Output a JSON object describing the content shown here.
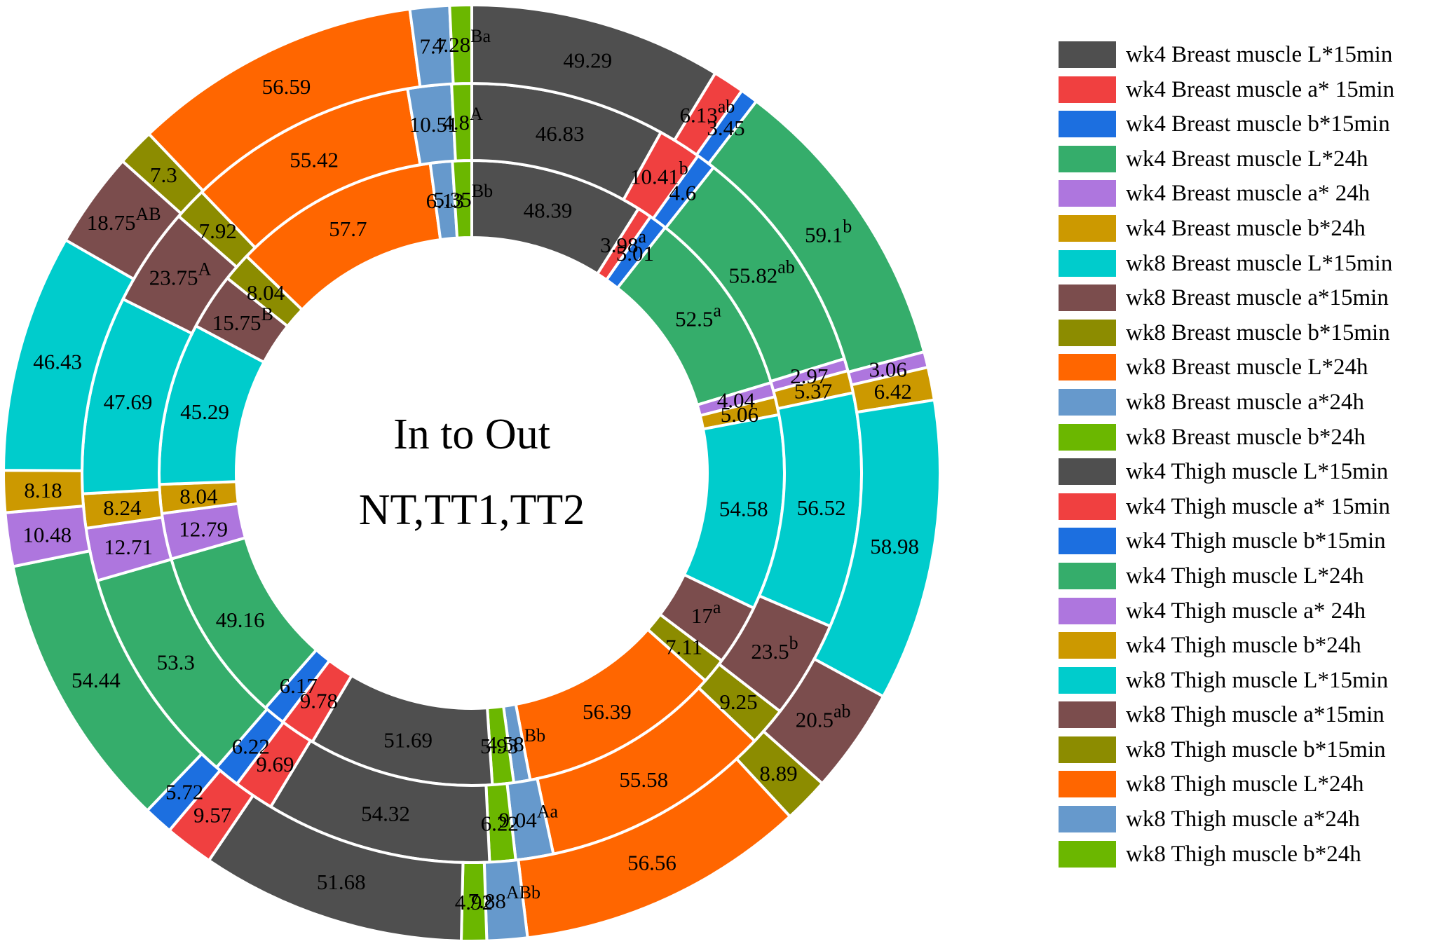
{
  "chart_data": {
    "type": "pie",
    "subtype": "multi-ring donut",
    "title": "",
    "center_label": [
      "In to Out",
      "NT,TT1,TT2"
    ],
    "rings_inner_to_outer": [
      "NT",
      "TT1",
      "TT2"
    ],
    "legend_position": "right",
    "categories": [
      "wk4 Breast muscle L*15min",
      "wk4 Breast muscle a* 15min",
      "wk4 Breast muscle b*15min",
      "wk4 Breast muscle L*24h",
      "wk4 Breast muscle a* 24h",
      "wk4 Breast muscle b*24h",
      "wk8 Breast muscle L*15min",
      "wk8 Breast muscle a*15min",
      "wk8 Breast muscle b*15min",
      "wk8 Breast muscle L*24h",
      "wk8 Breast muscle a*24h",
      "wk8 Breast muscle b*24h",
      "wk4 Thigh muscle L*15min",
      "wk4 Thigh muscle a* 15min",
      "wk4 Thigh muscle b*15min",
      "wk4 Thigh muscle L*24h",
      "wk4 Thigh muscle a* 24h",
      "wk4 Thigh muscle b*24h",
      "wk8 Thigh muscle L*15min",
      "wk8 Thigh muscle a*15min",
      "wk8 Thigh muscle b*15min",
      "wk8 Thigh muscle L*24h",
      "wk8 Thigh muscle a*24h",
      "wk8 Thigh muscle b*24h"
    ],
    "colors": [
      "#4f4f4f",
      "#f04040",
      "#1c6fe0",
      "#35ad6b",
      "#ae76de",
      "#cc9900",
      "#00cccc",
      "#7b4d4d",
      "#8c8c00",
      "#ff6600",
      "#6699cc",
      "#6bb700",
      "#4f4f4f",
      "#f04040",
      "#1c6fe0",
      "#35ad6b",
      "#ae76de",
      "#cc9900",
      "#00cccc",
      "#7b4d4d",
      "#8c8c00",
      "#ff6600",
      "#6699cc",
      "#6bb700"
    ],
    "series": [
      {
        "name": "NT",
        "values": [
          48.39,
          3.98,
          5.01,
          52.5,
          4.04,
          5.06,
          54.58,
          17,
          7.11,
          56.39,
          4.58,
          5.93,
          51.69,
          9.78,
          6.17,
          49.16,
          12.79,
          8.04,
          45.29,
          15.75,
          8.04,
          57.7,
          6.13,
          5.35
        ],
        "superscripts": [
          "",
          "a",
          "",
          "a",
          "",
          "",
          "",
          "a",
          "",
          "",
          "Bb",
          "",
          "",
          "",
          "",
          "",
          "",
          "",
          "",
          "B",
          "",
          "",
          "",
          "Bb"
        ]
      },
      {
        "name": "TT1",
        "values": [
          46.83,
          10.41,
          4.6,
          55.82,
          2.97,
          5.37,
          56.52,
          23.5,
          9.25,
          55.58,
          9.04,
          6.22,
          54.32,
          9.69,
          6.22,
          53.3,
          12.71,
          8.24,
          47.69,
          23.75,
          7.92,
          55.42,
          10.51,
          4.8
        ],
        "superscripts": [
          "",
          "b",
          "",
          "ab",
          "",
          "",
          "",
          "b",
          "",
          "",
          "Aa",
          "",
          "",
          "",
          "",
          "",
          "",
          "",
          "",
          "A",
          "",
          "",
          "",
          "A"
        ]
      },
      {
        "name": "TT2",
        "values": [
          49.29,
          6.13,
          3.45,
          59.1,
          3.06,
          6.42,
          58.98,
          20.5,
          8.89,
          56.56,
          7.88,
          4.92,
          51.68,
          9.57,
          5.72,
          54.44,
          10.48,
          8.18,
          46.43,
          18.75,
          7.3,
          56.59,
          7.7,
          4.28
        ],
        "superscripts": [
          "",
          "ab",
          "",
          "b",
          "",
          "",
          "",
          "ab",
          "",
          "",
          "ABb",
          "",
          "",
          "",
          "",
          "",
          "",
          "",
          "",
          "AB",
          "",
          "",
          "",
          "Ba"
        ]
      }
    ]
  }
}
